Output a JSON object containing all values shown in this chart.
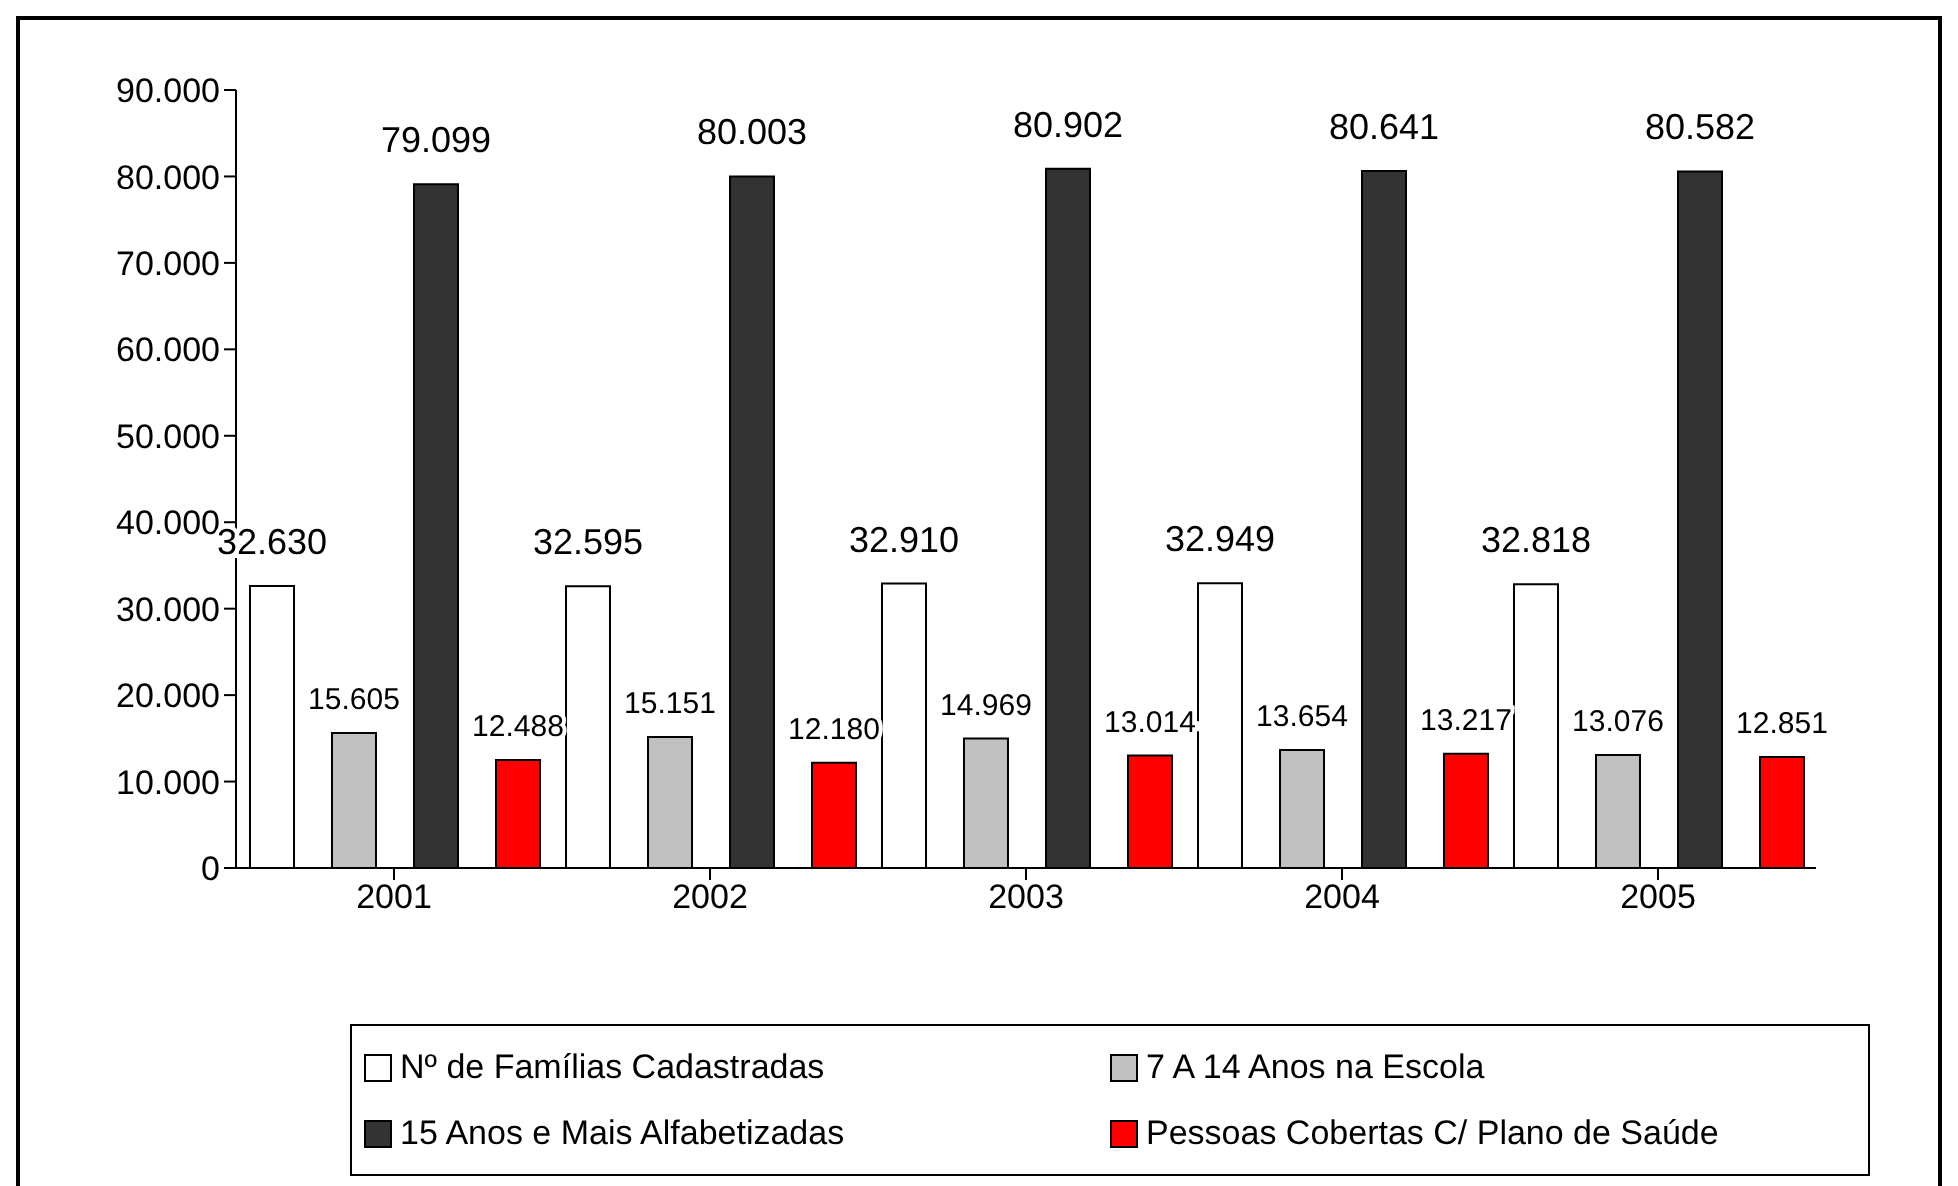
{
  "chart_data": {
    "type": "bar",
    "categories": [
      "2001",
      "2002",
      "2003",
      "2004",
      "2005"
    ],
    "series": [
      {
        "name": "Nº de Famílias Cadastradas",
        "color": "#ffffff",
        "values": [
          32630,
          32595,
          32910,
          32949,
          32818
        ],
        "value_labels": [
          "32.630",
          "32.595",
          "32.910",
          "32.949",
          "32.818"
        ]
      },
      {
        "name": "7 A 14 Anos na Escola",
        "color": "#c0c0c0",
        "values": [
          15605,
          15151,
          14969,
          13654,
          13076
        ],
        "value_labels": [
          "15.605",
          "15.151",
          "14.969",
          "13.654",
          "13.076"
        ]
      },
      {
        "name": "15 Anos e Mais Alfabetizadas",
        "color": "#333333",
        "values": [
          79099,
          80003,
          80902,
          80641,
          80582
        ],
        "value_labels": [
          "79.099",
          "80.003",
          "80.902",
          "80.641",
          "80.582"
        ]
      },
      {
        "name": "Pessoas Cobertas C/ Plano de Saúde",
        "color": "#ff0000",
        "values": [
          12488,
          12180,
          13014,
          13217,
          12851
        ],
        "value_labels": [
          "12.488",
          "12.180",
          "13.014",
          "13.217",
          "12.851"
        ]
      }
    ],
    "ylim": [
      0,
      90000
    ],
    "yticks": [
      {
        "value": 0,
        "label": "0"
      },
      {
        "value": 10000,
        "label": "10.000"
      },
      {
        "value": 20000,
        "label": "20.000"
      },
      {
        "value": 30000,
        "label": "30.000"
      },
      {
        "value": 40000,
        "label": "40.000"
      },
      {
        "value": 50000,
        "label": "50.000"
      },
      {
        "value": 60000,
        "label": "60.000"
      },
      {
        "value": 70000,
        "label": "70.000"
      },
      {
        "value": 80000,
        "label": "80.000"
      },
      {
        "value": 90000,
        "label": "90.000"
      }
    ],
    "grid": false,
    "legend": "bottom"
  }
}
